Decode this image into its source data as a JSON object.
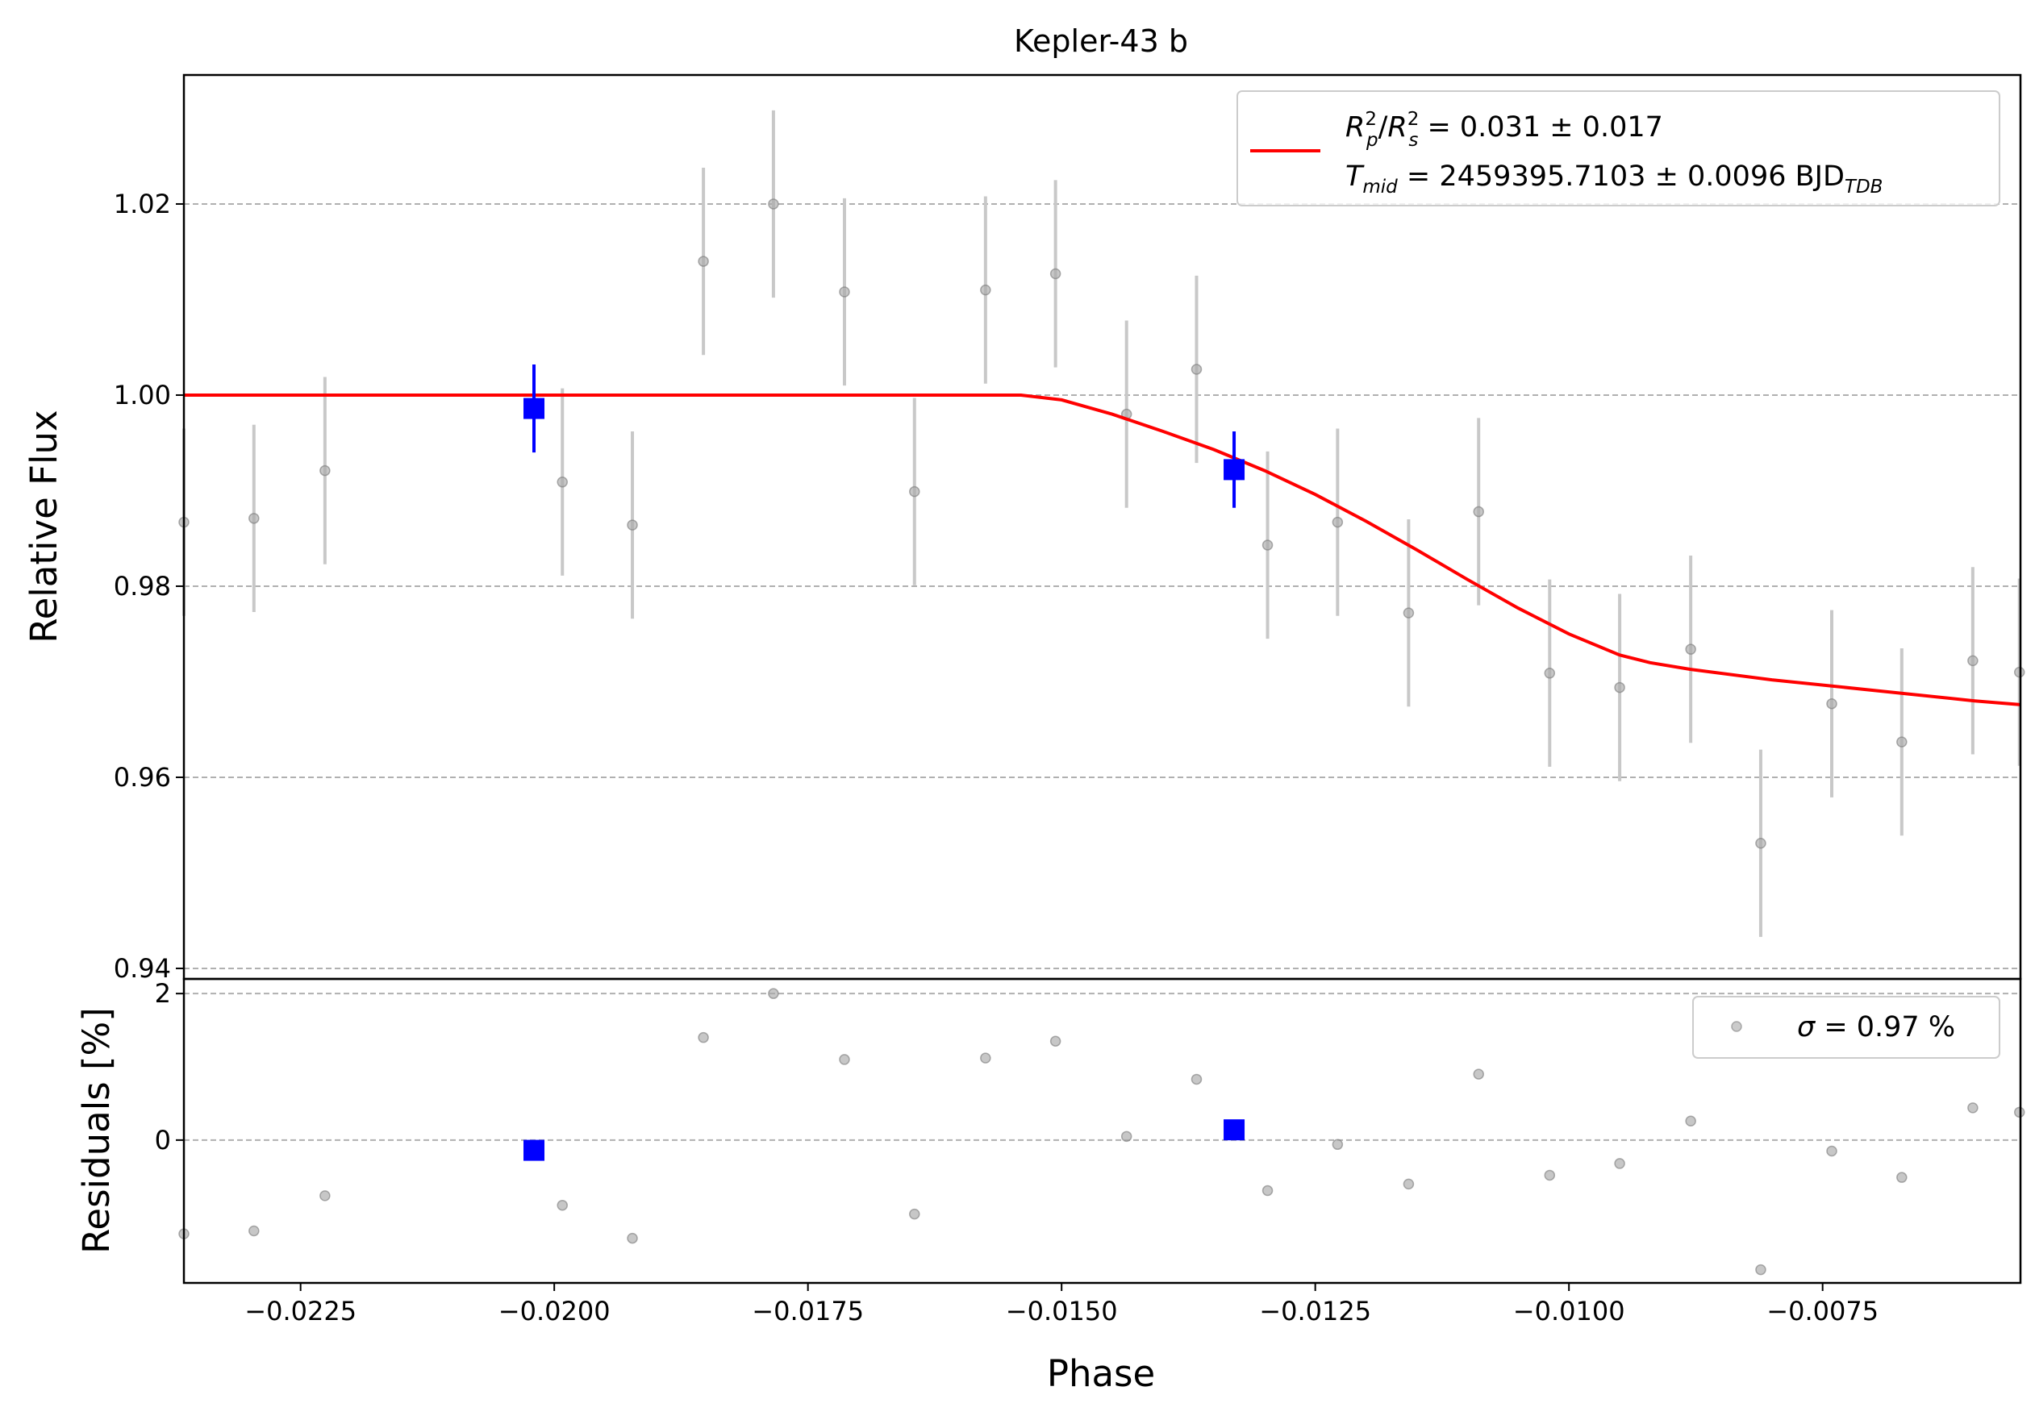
{
  "chart_data": [
    {
      "type": "scatter",
      "panel": "main",
      "title": "Kepler-43 b",
      "xlabel": "",
      "ylabel": "Relative Flux",
      "xlim": [
        -0.02365,
        -0.00555
      ],
      "ylim": [
        0.9389,
        1.0335
      ],
      "grid": "y-dashed",
      "yticks": [
        {
          "value": 0.94,
          "label": "0.94"
        },
        {
          "value": 0.96,
          "label": "0.96"
        },
        {
          "value": 0.98,
          "label": "0.98"
        },
        {
          "value": 1.0,
          "label": "1.00"
        },
        {
          "value": 1.02,
          "label": "1.02"
        }
      ],
      "legend": {
        "position": "top-right",
        "line1": {
          "a": "R",
          "a_sup": "2",
          "a_sub": "p",
          "slash": "/",
          "b": "R",
          "b_sup": "2",
          "b_sub": "s",
          "value": " = 0.031 ± 0.017"
        },
        "line2": {
          "t": "T",
          "t_sub": "mid",
          "value": " = 2459395.7103 ± 0.0096 BJD",
          "unit_sub": "TDB"
        }
      },
      "colors": {
        "data": "#a9a9a9",
        "binned": "#0000ff",
        "model": "#ff0000",
        "grid": "#b0b0b0"
      },
      "points": [
        {
          "x": -0.02365,
          "y": 0.9867,
          "err": 0.0098
        },
        {
          "x": -0.02296,
          "y": 0.9871,
          "err": 0.0098
        },
        {
          "x": -0.02226,
          "y": 0.9921,
          "err": 0.0098
        },
        {
          "x": -0.01992,
          "y": 0.9909,
          "err": 0.0098
        },
        {
          "x": -0.01923,
          "y": 0.9864,
          "err": 0.0098
        },
        {
          "x": -0.01853,
          "y": 1.014,
          "err": 0.0098
        },
        {
          "x": -0.01784,
          "y": 1.02,
          "err": 0.0098
        },
        {
          "x": -0.01714,
          "y": 1.0108,
          "err": 0.0098
        },
        {
          "x": -0.01645,
          "y": 0.9899,
          "err": 0.0098
        },
        {
          "x": -0.01575,
          "y": 1.011,
          "err": 0.0098
        },
        {
          "x": -0.01506,
          "y": 1.0127,
          "err": 0.0098
        },
        {
          "x": -0.01436,
          "y": 0.998,
          "err": 0.0098
        },
        {
          "x": -0.01367,
          "y": 1.0027,
          "err": 0.0098
        },
        {
          "x": -0.01297,
          "y": 0.9843,
          "err": 0.0098
        },
        {
          "x": -0.01228,
          "y": 0.9867,
          "err": 0.0098
        },
        {
          "x": -0.01158,
          "y": 0.9772,
          "err": 0.0098
        },
        {
          "x": -0.01089,
          "y": 0.9878,
          "err": 0.0098
        },
        {
          "x": -0.01019,
          "y": 0.9709,
          "err": 0.0098
        },
        {
          "x": -0.0095,
          "y": 0.9694,
          "err": 0.0098
        },
        {
          "x": -0.0088,
          "y": 0.9734,
          "err": 0.0098
        },
        {
          "x": -0.00811,
          "y": 0.9531,
          "err": 0.0098
        },
        {
          "x": -0.00741,
          "y": 0.9677,
          "err": 0.0098
        },
        {
          "x": -0.00672,
          "y": 0.9637,
          "err": 0.0098
        },
        {
          "x": -0.00602,
          "y": 0.9722,
          "err": 0.0098
        },
        {
          "x": -0.00556,
          "y": 0.971,
          "err": 0.0098
        }
      ],
      "binned": [
        {
          "x": -0.0202,
          "y": 0.9986,
          "err": 0.0046
        },
        {
          "x": -0.0133,
          "y": 0.9922,
          "err": 0.004
        }
      ],
      "model": [
        {
          "x": -0.02365,
          "y": 1.0
        },
        {
          "x": -0.0154,
          "y": 1.0
        },
        {
          "x": -0.015,
          "y": 0.9995
        },
        {
          "x": -0.0145,
          "y": 0.998
        },
        {
          "x": -0.014,
          "y": 0.9962
        },
        {
          "x": -0.0135,
          "y": 0.9943
        },
        {
          "x": -0.013,
          "y": 0.9921
        },
        {
          "x": -0.0125,
          "y": 0.9896
        },
        {
          "x": -0.012,
          "y": 0.9868
        },
        {
          "x": -0.0115,
          "y": 0.9838
        },
        {
          "x": -0.011,
          "y": 0.9807
        },
        {
          "x": -0.0105,
          "y": 0.9777
        },
        {
          "x": -0.01,
          "y": 0.975
        },
        {
          "x": -0.0095,
          "y": 0.9728
        },
        {
          "x": -0.0092,
          "y": 0.972
        },
        {
          "x": -0.0088,
          "y": 0.9713
        },
        {
          "x": -0.008,
          "y": 0.9702
        },
        {
          "x": -0.007,
          "y": 0.9691
        },
        {
          "x": -0.006,
          "y": 0.968
        },
        {
          "x": -0.00555,
          "y": 0.9676
        }
      ]
    },
    {
      "type": "scatter",
      "panel": "residuals",
      "xlabel": "Phase",
      "ylabel": "Residuals [%]",
      "xlim": [
        -0.02365,
        -0.00555
      ],
      "ylim": [
        -1.95,
        2.2
      ],
      "grid": "y-dashed",
      "yticks": [
        {
          "value": 0,
          "label": "0"
        },
        {
          "value": 2,
          "label": "2"
        }
      ],
      "xticks": [
        {
          "value": -0.0225,
          "label": "−0.0225"
        },
        {
          "value": -0.02,
          "label": "−0.0200"
        },
        {
          "value": -0.0175,
          "label": "−0.0175"
        },
        {
          "value": -0.015,
          "label": "−0.0150"
        },
        {
          "value": -0.0125,
          "label": "−0.0125"
        },
        {
          "value": -0.01,
          "label": "−0.0100"
        },
        {
          "value": -0.0075,
          "label": "−0.0075"
        }
      ],
      "legend": {
        "position": "top-right",
        "sigma_symbol": "σ",
        "text": " = 0.97 %"
      },
      "points": [
        {
          "x": -0.02365,
          "y": -1.28
        },
        {
          "x": -0.02296,
          "y": -1.24
        },
        {
          "x": -0.02226,
          "y": -0.76
        },
        {
          "x": -0.01992,
          "y": -0.89
        },
        {
          "x": -0.01923,
          "y": -1.34
        },
        {
          "x": -0.01853,
          "y": 1.4
        },
        {
          "x": -0.01784,
          "y": 2.0
        },
        {
          "x": -0.01714,
          "y": 1.1
        },
        {
          "x": -0.01645,
          "y": -1.01
        },
        {
          "x": -0.01575,
          "y": 1.12
        },
        {
          "x": -0.01506,
          "y": 1.35
        },
        {
          "x": -0.01436,
          "y": 0.05
        },
        {
          "x": -0.01367,
          "y": 0.83
        },
        {
          "x": -0.01297,
          "y": -0.69
        },
        {
          "x": -0.01228,
          "y": -0.06
        },
        {
          "x": -0.01158,
          "y": -0.6
        },
        {
          "x": -0.01089,
          "y": 0.9
        },
        {
          "x": -0.01019,
          "y": -0.48
        },
        {
          "x": -0.0095,
          "y": -0.32
        },
        {
          "x": -0.0088,
          "y": 0.26
        },
        {
          "x": -0.00811,
          "y": -1.77
        },
        {
          "x": -0.00741,
          "y": -0.15
        },
        {
          "x": -0.00672,
          "y": -0.51
        },
        {
          "x": -0.00602,
          "y": 0.44
        },
        {
          "x": -0.00556,
          "y": 0.38
        }
      ],
      "binned": [
        {
          "x": -0.0202,
          "y": -0.14
        },
        {
          "x": -0.0133,
          "y": 0.14
        }
      ]
    }
  ]
}
